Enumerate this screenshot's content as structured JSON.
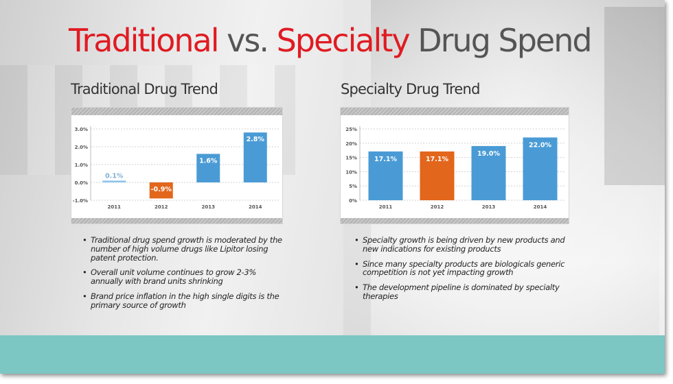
{
  "title": {
    "part1": "Traditional",
    "part2": "vs.",
    "part3": "Specialty",
    "part4": "Drug Spend"
  },
  "colors": {
    "title_red": "#e01b22",
    "title_gray": "#555555",
    "bar_blue": "#4a9bd5",
    "bar_orange": "#e2661c",
    "bar_light_blue": "#8ec4ec",
    "footer_teal": "#7cc6c3"
  },
  "left": {
    "heading": "Traditional Drug Trend",
    "bullets": [
      "Traditional drug spend growth is moderated by the number of high volume drugs like Lipitor losing patent protection.",
      "Overall unit volume continues to grow 2-3% annually with brand units shrinking",
      "Brand price inflation in the high single digits is the primary source of growth"
    ]
  },
  "right": {
    "heading": "Specialty Drug Trend",
    "bullets": [
      "Specialty growth is being driven by new products and new indications for existing products",
      "Since many specialty products are biologicals generic competition is not yet impacting growth",
      "The development pipeline is dominated by specialty therapies"
    ]
  },
  "chart_data": [
    {
      "type": "bar",
      "categories": [
        "2011",
        "2012",
        "2013",
        "2014"
      ],
      "values": [
        0.1,
        -0.9,
        1.6,
        2.8
      ],
      "value_labels": [
        "0.1%",
        "-0.9%",
        "1.6%",
        "2.8%"
      ],
      "bar_colors": [
        "#8ec4ec",
        "#e2661c",
        "#4a9bd5",
        "#4a9bd5"
      ],
      "yticks": [
        3.0,
        2.0,
        1.0,
        0.0,
        -1.0
      ],
      "ytick_labels": [
        "3.0%",
        "2.0%",
        "1.0%",
        "0.0%",
        "-1.0%"
      ],
      "ylim": [
        -1.0,
        3.0
      ],
      "grid": true
    },
    {
      "type": "bar",
      "categories": [
        "2011",
        "2012",
        "2013",
        "2014"
      ],
      "values": [
        17.1,
        17.1,
        19.0,
        22.0
      ],
      "value_labels": [
        "17.1%",
        "17.1%",
        "19.0%",
        "22.0%"
      ],
      "bar_colors": [
        "#4a9bd5",
        "#e2661c",
        "#4a9bd5",
        "#4a9bd5"
      ],
      "yticks": [
        25,
        20,
        15,
        10,
        5,
        0
      ],
      "ytick_labels": [
        "25%",
        "20%",
        "15%",
        "10%",
        "5%",
        "0%"
      ],
      "ylim": [
        0,
        25
      ],
      "grid": true
    }
  ]
}
